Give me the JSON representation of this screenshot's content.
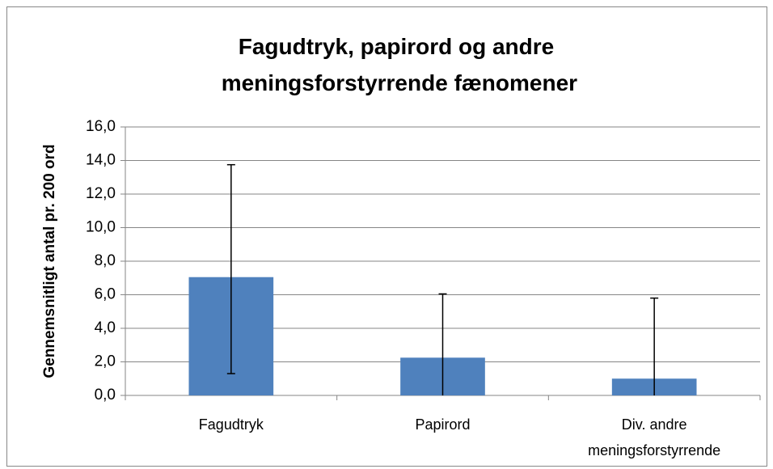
{
  "chart_data": {
    "type": "bar",
    "title": "Fagudtryk, papirord og andre meningsforstyrrende fænomener",
    "y_label": "Gennemsnitligt antal pr. 200 ord",
    "categories": [
      "Fagudtryk",
      "Papirord",
      "Div. andre meningsforstyrrende"
    ],
    "values": [
      7.05,
      2.25,
      1.0
    ],
    "errors_plus": [
      6.7,
      3.8,
      4.8
    ],
    "errors_minus": [
      5.75,
      3.8,
      4.8
    ],
    "color": "#4f81bd",
    "ylim": [
      0,
      16
    ],
    "yticks": [
      {
        "value": 0,
        "label": "0,0"
      },
      {
        "value": 2,
        "label": "2,0"
      },
      {
        "value": 4,
        "label": "4,0"
      },
      {
        "value": 6,
        "label": "6,0"
      },
      {
        "value": 8,
        "label": "8,0"
      },
      {
        "value": 10,
        "label": "10,0"
      },
      {
        "value": 12,
        "label": "12,0"
      },
      {
        "value": 14,
        "label": "14,0"
      },
      {
        "value": 16,
        "label": "16,0"
      }
    ],
    "grid": true
  }
}
